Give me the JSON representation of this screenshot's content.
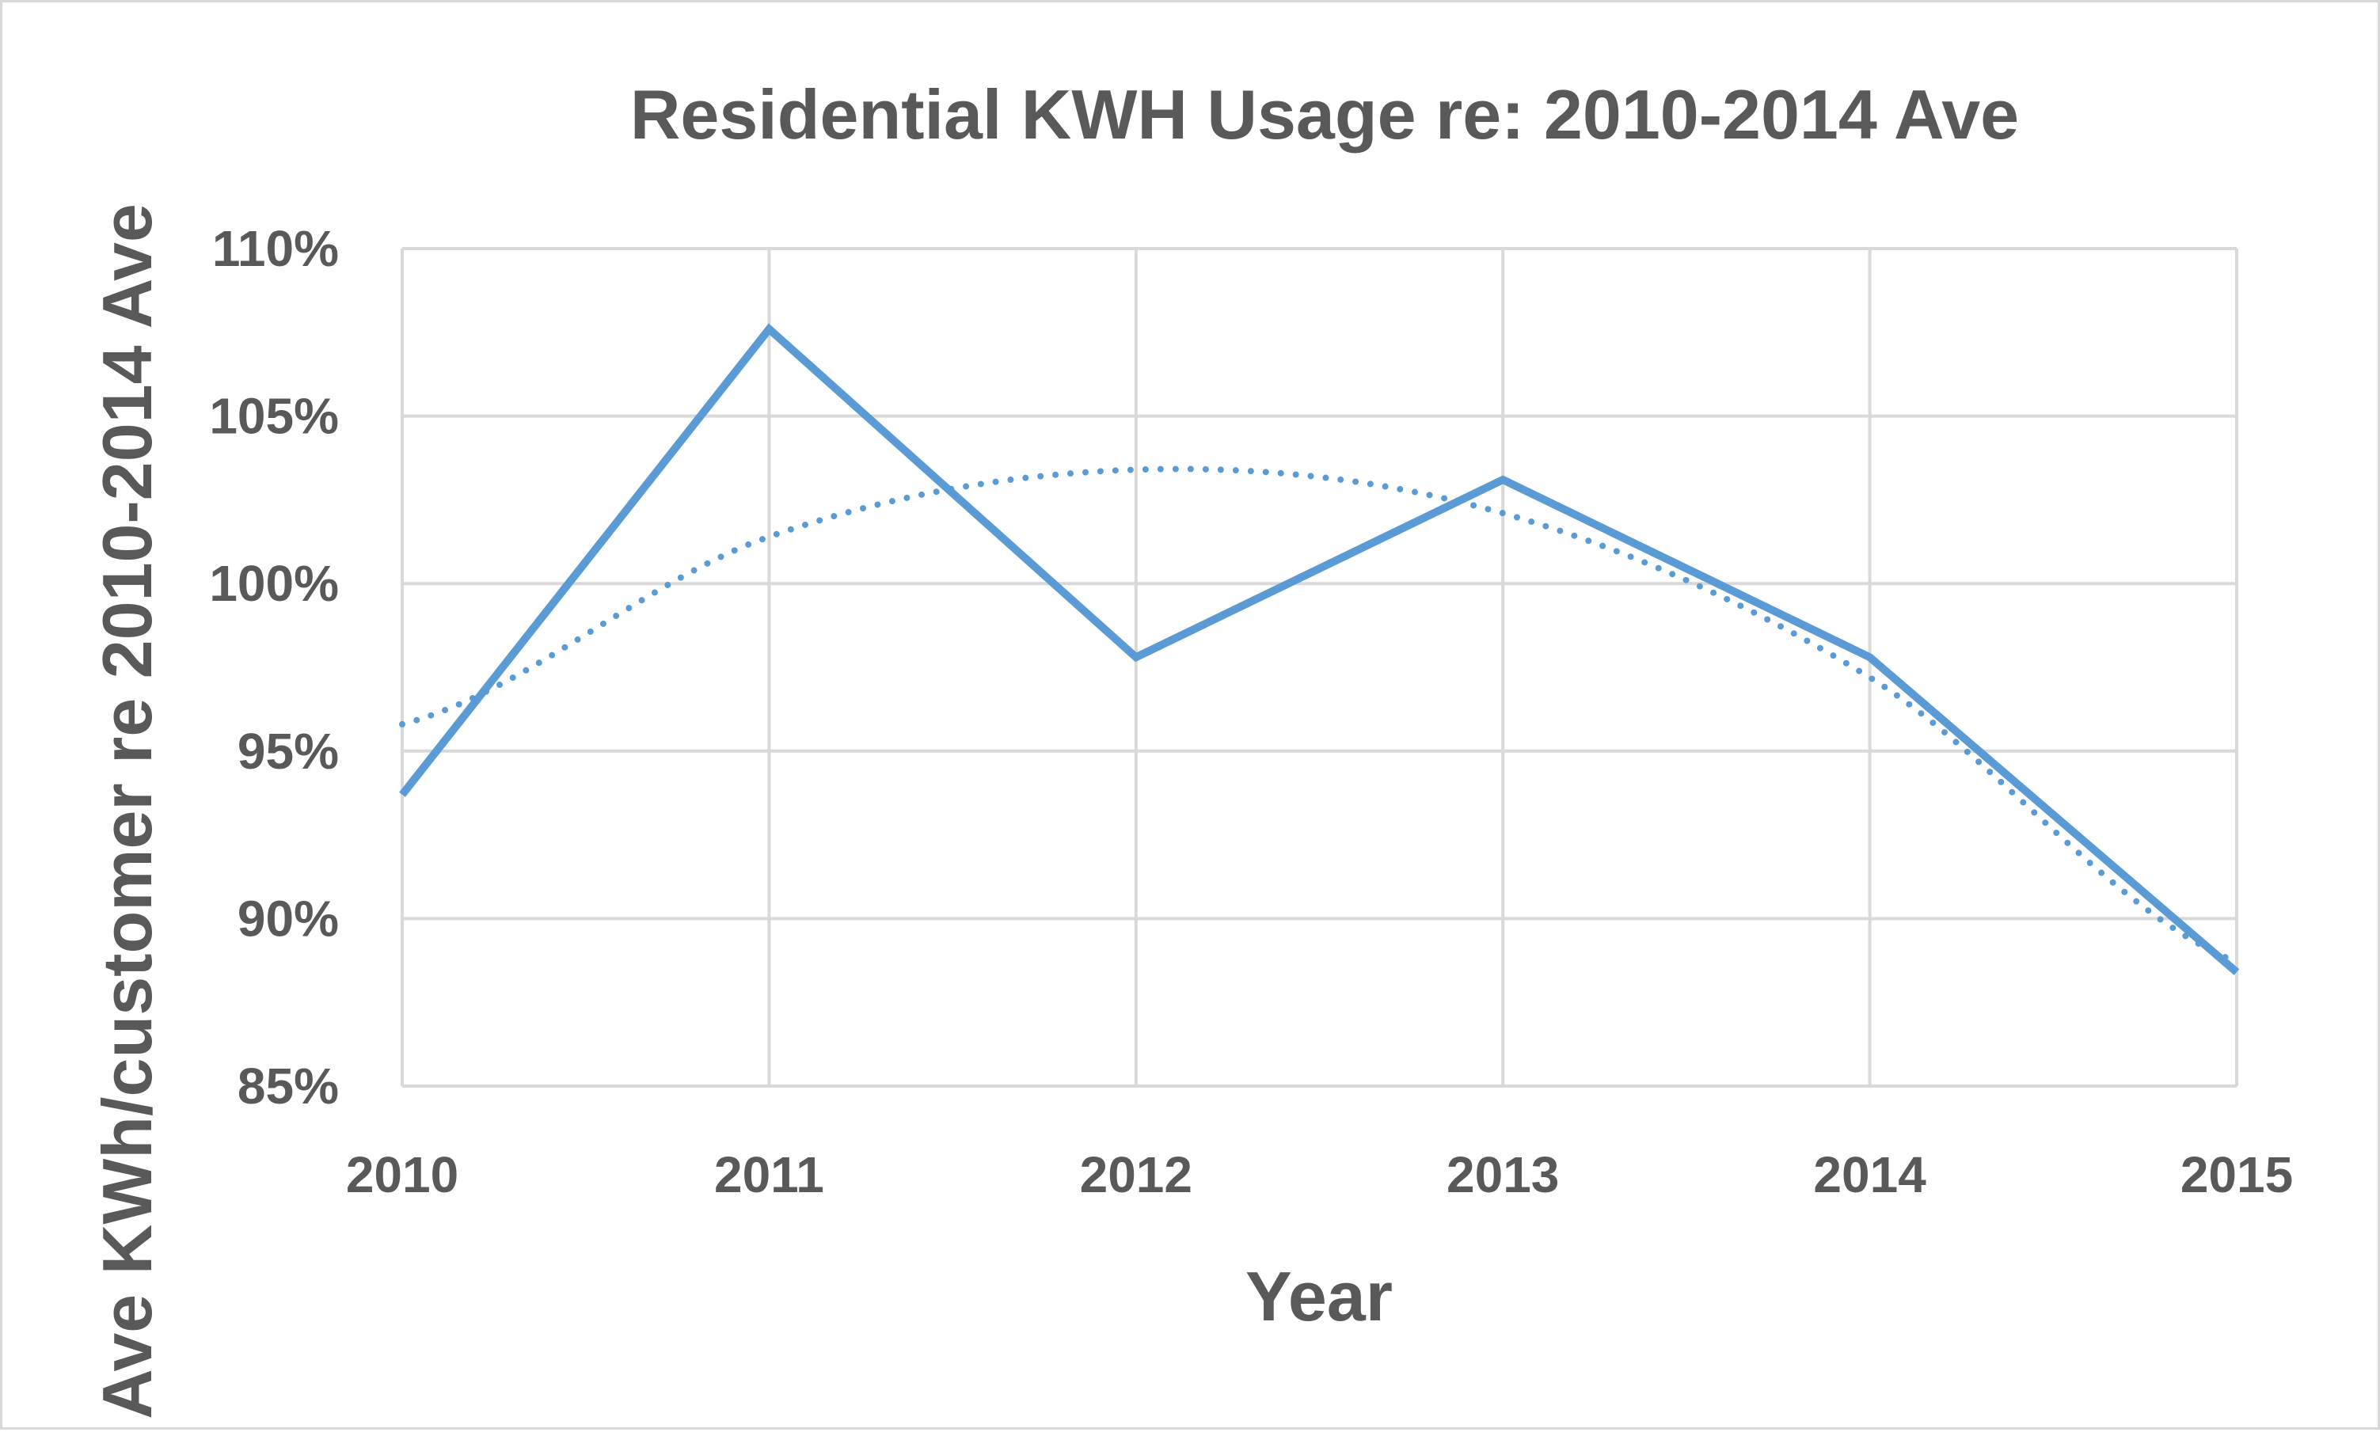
{
  "chart_data": {
    "type": "line",
    "title": "Residential KWH Usage re: 2010-2014 Ave",
    "xlabel": "Year",
    "ylabel": "Ave KWh/customer re 2010-2014 Ave",
    "x": [
      2010,
      2011,
      2012,
      2013,
      2014,
      2015
    ],
    "x_tick_labels": [
      "2010",
      "2011",
      "2012",
      "2013",
      "2014",
      "2015"
    ],
    "y_tick_labels": [
      "110%",
      "105%",
      "100%",
      "95%",
      "90%",
      "85%"
    ],
    "y_ticks": [
      110,
      105,
      100,
      95,
      90,
      85
    ],
    "xlim": [
      2010,
      2015
    ],
    "ylim": [
      85,
      110
    ],
    "grid": true,
    "series": [
      {
        "style": "solid",
        "color": "#5b9bd5",
        "values": [
          93.7,
          107.6,
          97.8,
          103.1,
          97.8,
          88.4
        ]
      },
      {
        "style": "dotted",
        "trendline": "polynomial",
        "color": "#5b9bd5",
        "values": [
          95.8,
          101.4,
          103.4,
          102.1,
          97.2,
          88.7
        ]
      }
    ]
  }
}
